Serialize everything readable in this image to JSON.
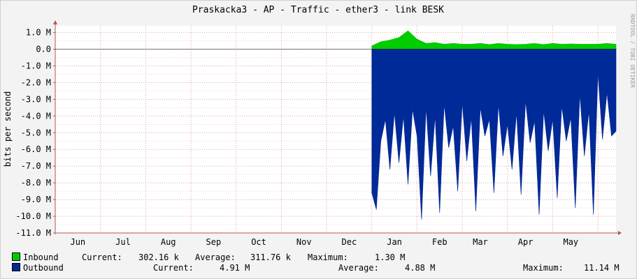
{
  "chart_data": {
    "type": "area",
    "title": "Praskacka3 - AP - Traffic - ether3 - link BESK",
    "ylabel": "bits per second",
    "xlabel": "",
    "watermark": "RRDTOOL / TOBI OETIKER",
    "ylim": [
      -11000000,
      1400000
    ],
    "xlim": [
      0,
      12.4
    ],
    "y_ticks": [
      {
        "v": 1000000,
        "label": "1.0 M"
      },
      {
        "v": 0,
        "label": "0.0"
      },
      {
        "v": -1000000,
        "label": "-1.0 M"
      },
      {
        "v": -2000000,
        "label": "-2.0 M"
      },
      {
        "v": -3000000,
        "label": "-3.0 M"
      },
      {
        "v": -4000000,
        "label": "-4.0 M"
      },
      {
        "v": -5000000,
        "label": "-5.0 M"
      },
      {
        "v": -6000000,
        "label": "-6.0 M"
      },
      {
        "v": -7000000,
        "label": "-7.0 M"
      },
      {
        "v": -8000000,
        "label": "-8.0 M"
      },
      {
        "v": -9000000,
        "label": "-9.0 M"
      },
      {
        "v": -10000000,
        "label": "-10.0 M"
      },
      {
        "v": -11000000,
        "label": "-11.0 M"
      }
    ],
    "x_ticks": [
      {
        "v": 0.5,
        "label": "Jun"
      },
      {
        "v": 1.5,
        "label": "Jul"
      },
      {
        "v": 2.5,
        "label": "Aug"
      },
      {
        "v": 3.5,
        "label": "Sep"
      },
      {
        "v": 4.5,
        "label": "Oct"
      },
      {
        "v": 5.5,
        "label": "Nov"
      },
      {
        "v": 6.5,
        "label": "Dec"
      },
      {
        "v": 7.5,
        "label": "Jan"
      },
      {
        "v": 8.5,
        "label": "Feb"
      },
      {
        "v": 9.4,
        "label": "Mar"
      },
      {
        "v": 10.4,
        "label": "Apr"
      },
      {
        "v": 11.4,
        "label": "May"
      }
    ],
    "grid": true,
    "series": [
      {
        "name": "Inbound",
        "color": "#00cc00",
        "x": [
          7.0,
          7.2,
          7.4,
          7.6,
          7.8,
          8.0,
          8.2,
          8.4,
          8.6,
          8.8,
          9.0,
          9.2,
          9.4,
          9.6,
          9.8,
          10.0,
          10.2,
          10.4,
          10.6,
          10.8,
          11.0,
          11.2,
          11.4,
          11.6,
          11.8,
          12.0,
          12.2,
          12.4
        ],
        "values": [
          200000,
          450000,
          550000,
          700000,
          1100000,
          600000,
          350000,
          400000,
          300000,
          350000,
          300000,
          300000,
          350000,
          280000,
          350000,
          300000,
          280000,
          300000,
          350000,
          280000,
          350000,
          300000,
          320000,
          300000,
          300000,
          300000,
          350000,
          300000
        ]
      },
      {
        "name": "Outbound",
        "color": "#002a97",
        "x": [
          7.0,
          7.1,
          7.2,
          7.3,
          7.4,
          7.5,
          7.6,
          7.7,
          7.8,
          7.9,
          8.0,
          8.1,
          8.2,
          8.3,
          8.4,
          8.5,
          8.6,
          8.7,
          8.8,
          8.9,
          9.0,
          9.1,
          9.2,
          9.3,
          9.4,
          9.5,
          9.6,
          9.7,
          9.8,
          9.9,
          10.0,
          10.1,
          10.2,
          10.3,
          10.4,
          10.5,
          10.6,
          10.7,
          10.8,
          10.9,
          11.0,
          11.1,
          11.2,
          11.3,
          11.4,
          11.5,
          11.6,
          11.7,
          11.8,
          11.9,
          12.0,
          12.1,
          12.2,
          12.3,
          12.4
        ],
        "values": [
          -8600000,
          -9600000,
          -5500000,
          -4200000,
          -7200000,
          -3800000,
          -6800000,
          -4000000,
          -8100000,
          -3600000,
          -5200000,
          -10200000,
          -3500000,
          -7600000,
          -4000000,
          -9800000,
          -3300000,
          -5900000,
          -4600000,
          -8500000,
          -3200000,
          -6700000,
          -4100000,
          -9700000,
          -3500000,
          -5200000,
          -4200000,
          -8600000,
          -3300000,
          -6400000,
          -4500000,
          -7200000,
          -3800000,
          -8700000,
          -3100000,
          -5600000,
          -4300000,
          -9900000,
          -3700000,
          -6100000,
          -4200000,
          -8900000,
          -3400000,
          -5500000,
          -4100000,
          -9500000,
          -2700000,
          -6400000,
          -3700000,
          -9900000,
          -1400000,
          -5400000,
          -2600000,
          -5200000,
          -4900000
        ]
      }
    ]
  },
  "legend": {
    "inbound": {
      "name": "Inbound",
      "current_label": "Current:",
      "current": "302.16 k",
      "average_label": "Average:",
      "average": "311.76 k",
      "maximum_label": "Maximum:",
      "maximum": "1.30 M"
    },
    "outbound": {
      "name": "Outbound",
      "current_label": "Current:",
      "current": "4.91 M",
      "average_label": "Average:",
      "average": "4.88 M",
      "maximum_label": "Maximum:",
      "maximum": "11.14 M"
    }
  }
}
